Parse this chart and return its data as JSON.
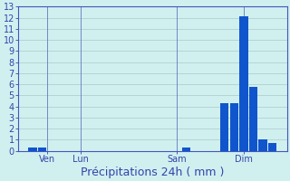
{
  "title": "",
  "xlabel": "Précipitations 24h ( mm )",
  "ylabel": "",
  "ylim": [
    0,
    13
  ],
  "yticks": [
    0,
    1,
    2,
    3,
    4,
    5,
    6,
    7,
    8,
    9,
    10,
    11,
    12,
    13
  ],
  "bar_color": "#1055cc",
  "background_color": "#d0f0f0",
  "grid_color": "#b0d0d0",
  "axis_color": "#4455bb",
  "label_color": "#3344aa",
  "bar_data": [
    {
      "x": 1,
      "height": 0.3
    },
    {
      "x": 2,
      "height": 0.3
    },
    {
      "x": 17,
      "height": 0.3
    },
    {
      "x": 21,
      "height": 4.3
    },
    {
      "x": 22,
      "height": 4.3
    },
    {
      "x": 23,
      "height": 12.1
    },
    {
      "x": 24,
      "height": 5.8
    },
    {
      "x": 25,
      "height": 1.0
    },
    {
      "x": 26,
      "height": 0.7
    }
  ],
  "xtick_positions": [
    2.5,
    6,
    16,
    23
  ],
  "xtick_labels": [
    "Ven",
    "Lun",
    "Sam",
    "Dim"
  ],
  "n_bars": 28,
  "xlim": [
    -0.5,
    27.5
  ],
  "xlabel_fontsize": 9,
  "tick_fontsize": 7
}
